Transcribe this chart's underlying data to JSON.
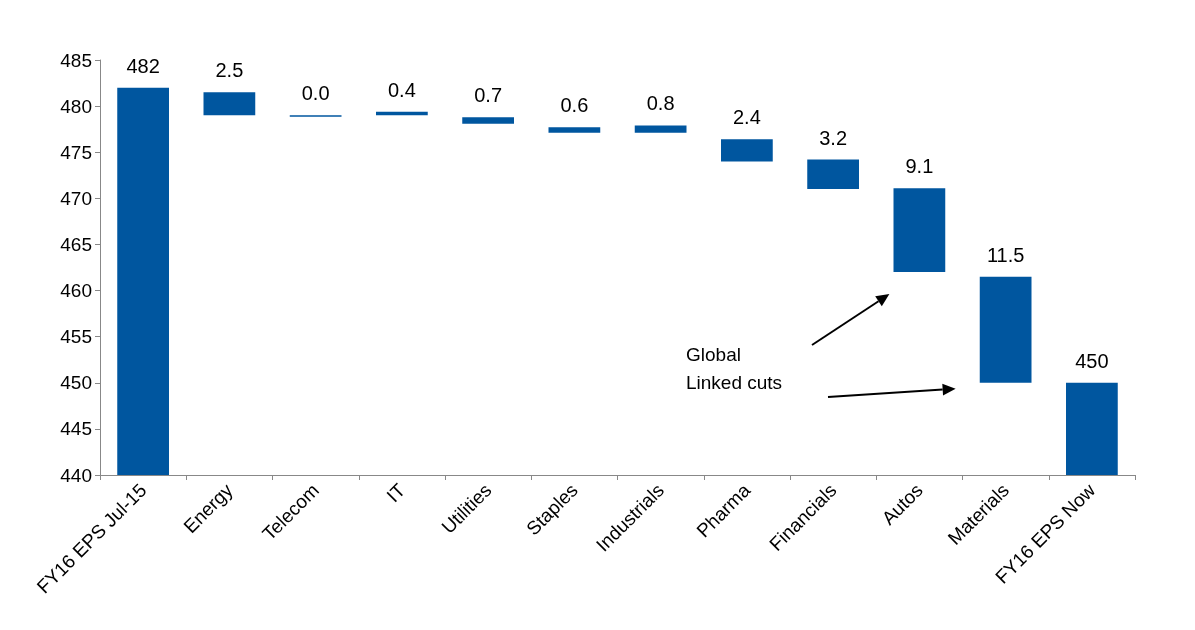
{
  "chart_data": {
    "type": "bar",
    "categories": [
      "FY16 EPS Jul-15",
      "Energy",
      "Telecom",
      "IT",
      "Utilities",
      "Staples",
      "Industrials",
      "Pharma",
      "Financials",
      "Autos",
      "Materials",
      "FY16 EPS Now"
    ],
    "base": [
      440,
      481.5,
      479,
      479.4,
      478.8,
      477.7,
      477.9,
      476.4,
      474.2,
      471.1,
      461.5,
      440
    ],
    "values": [
      42,
      -2.5,
      0,
      -0.4,
      -0.7,
      -0.6,
      -0.8,
      -2.4,
      -3.2,
      -9.1,
      -11.5,
      10
    ],
    "value_labels": [
      "482",
      "2.5",
      "0.0",
      "0.4",
      "0.7",
      "0.6",
      "0.8",
      "2.4",
      "3.2",
      "9.1",
      "11.5",
      "450"
    ],
    "color": "#00569f",
    "ylim": [
      440,
      485
    ],
    "yticks": [
      440,
      445,
      450,
      455,
      460,
      465,
      470,
      475,
      480,
      485
    ],
    "grid": false,
    "annotations": [
      "Global\nLinked cuts"
    ]
  }
}
